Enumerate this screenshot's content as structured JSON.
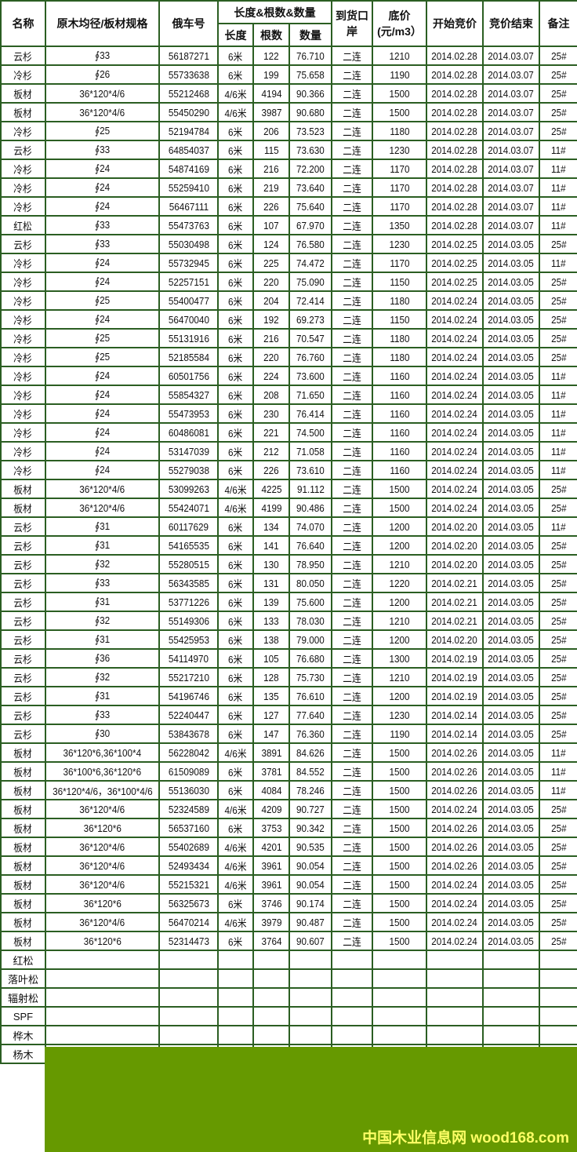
{
  "header": {
    "name": "名称",
    "spec": "原木均径/板材规格",
    "car": "俄车号",
    "group": "长度&根数&数量",
    "length": "长度",
    "count": "根数",
    "volume": "数量",
    "port": "到货口岸",
    "price": "底价(元/m3）",
    "start": "开始竞价",
    "end": "竞价结束",
    "note": "备注"
  },
  "rows": [
    [
      "云杉",
      "∮33",
      "56187271",
      "6米",
      "122",
      "76.710",
      "二连",
      "1210",
      "2014.02.28",
      "2014.03.07",
      "25#"
    ],
    [
      "冷杉",
      "∮26",
      "55733638",
      "6米",
      "199",
      "75.658",
      "二连",
      "1190",
      "2014.02.28",
      "2014.03.07",
      "25#"
    ],
    [
      "板材",
      "36*120*4/6",
      "55212468",
      "4/6米",
      "4194",
      "90.366",
      "二连",
      "1500",
      "2014.02.28",
      "2014.03.07",
      "25#"
    ],
    [
      "板材",
      "36*120*4/6",
      "55450290",
      "4/6米",
      "3987",
      "90.680",
      "二连",
      "1500",
      "2014.02.28",
      "2014.03.07",
      "25#"
    ],
    [
      "冷杉",
      "∮25",
      "52194784",
      "6米",
      "206",
      "73.523",
      "二连",
      "1180",
      "2014.02.28",
      "2014.03.07",
      "25#"
    ],
    [
      "云杉",
      "∮33",
      "64854037",
      "6米",
      "115",
      "73.630",
      "二连",
      "1230",
      "2014.02.28",
      "2014.03.07",
      "11#"
    ],
    [
      "冷杉",
      "∮24",
      "54874169",
      "6米",
      "216",
      "72.200",
      "二连",
      "1170",
      "2014.02.28",
      "2014.03.07",
      "11#"
    ],
    [
      "冷杉",
      "∮24",
      "55259410",
      "6米",
      "219",
      "73.640",
      "二连",
      "1170",
      "2014.02.28",
      "2014.03.07",
      "11#"
    ],
    [
      "冷杉",
      "∮24",
      "56467111",
      "6米",
      "226",
      "75.640",
      "二连",
      "1170",
      "2014.02.28",
      "2014.03.07",
      "11#"
    ],
    [
      "红松",
      "∮33",
      "55473763",
      "6米",
      "107",
      "67.970",
      "二连",
      "1350",
      "2014.02.28",
      "2014.03.07",
      "11#"
    ],
    [
      "云杉",
      "∮33",
      "55030498",
      "6米",
      "124",
      "76.580",
      "二连",
      "1230",
      "2014.02.25",
      "2014.03.05",
      "25#"
    ],
    [
      "冷杉",
      "∮24",
      "55732945",
      "6米",
      "225",
      "74.472",
      "二连",
      "1170",
      "2014.02.25",
      "2014.03.05",
      "11#"
    ],
    [
      "冷杉",
      "∮24",
      "52257151",
      "6米",
      "220",
      "75.090",
      "二连",
      "1150",
      "2014.02.25",
      "2014.03.05",
      "25#"
    ],
    [
      "冷杉",
      "∮25",
      "55400477",
      "6米",
      "204",
      "72.414",
      "二连",
      "1180",
      "2014.02.24",
      "2014.03.05",
      "25#"
    ],
    [
      "冷杉",
      "∮24",
      "56470040",
      "6米",
      "192",
      "69.273",
      "二连",
      "1150",
      "2014.02.24",
      "2014.03.05",
      "25#"
    ],
    [
      "冷杉",
      "∮25",
      "55131916",
      "6米",
      "216",
      "70.547",
      "二连",
      "1180",
      "2014.02.24",
      "2014.03.05",
      "25#"
    ],
    [
      "冷杉",
      "∮25",
      "52185584",
      "6米",
      "220",
      "76.760",
      "二连",
      "1180",
      "2014.02.24",
      "2014.03.05",
      "25#"
    ],
    [
      "冷杉",
      "∮24",
      "60501756",
      "6米",
      "224",
      "73.600",
      "二连",
      "1160",
      "2014.02.24",
      "2014.03.05",
      "11#"
    ],
    [
      "冷杉",
      "∮24",
      "55854327",
      "6米",
      "208",
      "71.650",
      "二连",
      "1160",
      "2014.02.24",
      "2014.03.05",
      "11#"
    ],
    [
      "冷杉",
      "∮24",
      "55473953",
      "6米",
      "230",
      "76.414",
      "二连",
      "1160",
      "2014.02.24",
      "2014.03.05",
      "11#"
    ],
    [
      "冷杉",
      "∮24",
      "60486081",
      "6米",
      "221",
      "74.500",
      "二连",
      "1160",
      "2014.02.24",
      "2014.03.05",
      "11#"
    ],
    [
      "冷杉",
      "∮24",
      "53147039",
      "6米",
      "212",
      "71.058",
      "二连",
      "1160",
      "2014.02.24",
      "2014.03.05",
      "11#"
    ],
    [
      "冷杉",
      "∮24",
      "55279038",
      "6米",
      "226",
      "73.610",
      "二连",
      "1160",
      "2014.02.24",
      "2014.03.05",
      "11#"
    ],
    [
      "板材",
      "36*120*4/6",
      "53099263",
      "4/6米",
      "4225",
      "91.112",
      "二连",
      "1500",
      "2014.02.24",
      "2014.03.05",
      "25#"
    ],
    [
      "板材",
      "36*120*4/6",
      "55424071",
      "4/6米",
      "4199",
      "90.486",
      "二连",
      "1500",
      "2014.02.24",
      "2014.03.05",
      "25#"
    ],
    [
      "云杉",
      "∮31",
      "60117629",
      "6米",
      "134",
      "74.070",
      "二连",
      "1200",
      "2014.02.20",
      "2014.03.05",
      "11#"
    ],
    [
      "云杉",
      "∮31",
      "54165535",
      "6米",
      "141",
      "76.640",
      "二连",
      "1200",
      "2014.02.20",
      "2014.03.05",
      "25#"
    ],
    [
      "云杉",
      "∮32",
      "55280515",
      "6米",
      "130",
      "78.950",
      "二连",
      "1210",
      "2014.02.20",
      "2014.03.05",
      "25#"
    ],
    [
      "云杉",
      "∮33",
      "56343585",
      "6米",
      "131",
      "80.050",
      "二连",
      "1220",
      "2014.02.21",
      "2014.03.05",
      "25#"
    ],
    [
      "云杉",
      "∮31",
      "53771226",
      "6米",
      "139",
      "75.600",
      "二连",
      "1200",
      "2014.02.21",
      "2014.03.05",
      "25#"
    ],
    [
      "云杉",
      "∮32",
      "55149306",
      "6米",
      "133",
      "78.030",
      "二连",
      "1210",
      "2014.02.21",
      "2014.03.05",
      "25#"
    ],
    [
      "云杉",
      "∮31",
      "55425953",
      "6米",
      "138",
      "79.000",
      "二连",
      "1200",
      "2014.02.20",
      "2014.03.05",
      "25#"
    ],
    [
      "云杉",
      "∮36",
      "54114970",
      "6米",
      "105",
      "76.680",
      "二连",
      "1300",
      "2014.02.19",
      "2014.03.05",
      "25#"
    ],
    [
      "云杉",
      "∮32",
      "55217210",
      "6米",
      "128",
      "75.730",
      "二连",
      "1210",
      "2014.02.19",
      "2014.03.05",
      "25#"
    ],
    [
      "云杉",
      "∮31",
      "54196746",
      "6米",
      "135",
      "76.610",
      "二连",
      "1200",
      "2014.02.19",
      "2014.03.05",
      "25#"
    ],
    [
      "云杉",
      "∮33",
      "52240447",
      "6米",
      "127",
      "77.640",
      "二连",
      "1230",
      "2014.02.14",
      "2014.03.05",
      "25#"
    ],
    [
      "云杉",
      "∮30",
      "53843678",
      "6米",
      "147",
      "76.360",
      "二连",
      "1190",
      "2014.02.14",
      "2014.03.05",
      "25#"
    ],
    [
      "板材",
      "36*120*6,36*100*4",
      "56228042",
      "4/6米",
      "3891",
      "84.626",
      "二连",
      "1500",
      "2014.02.26",
      "2014.03.05",
      "11#"
    ],
    [
      "板材",
      "36*100*6,36*120*6",
      "61509089",
      "6米",
      "3781",
      "84.552",
      "二连",
      "1500",
      "2014.02.26",
      "2014.03.05",
      "11#"
    ],
    [
      "板材",
      "36*120*4/6，36*100*4/6",
      "55136030",
      "6米",
      "4084",
      "78.246",
      "二连",
      "1500",
      "2014.02.26",
      "2014.03.05",
      "11#"
    ],
    [
      "板材",
      "36*120*4/6",
      "52324589",
      "4/6米",
      "4209",
      "90.727",
      "二连",
      "1500",
      "2014.02.24",
      "2014.03.05",
      "25#"
    ],
    [
      "板材",
      "36*120*6",
      "56537160",
      "6米",
      "3753",
      "90.342",
      "二连",
      "1500",
      "2014.02.26",
      "2014.03.05",
      "25#"
    ],
    [
      "板材",
      "36*120*4/6",
      "55402689",
      "4/6米",
      "4201",
      "90.535",
      "二连",
      "1500",
      "2014.02.26",
      "2014.03.05",
      "25#"
    ],
    [
      "板材",
      "36*120*4/6",
      "52493434",
      "4/6米",
      "3961",
      "90.054",
      "二连",
      "1500",
      "2014.02.26",
      "2014.03.05",
      "25#"
    ],
    [
      "板材",
      "36*120*4/6",
      "55215321",
      "4/6米",
      "3961",
      "90.054",
      "二连",
      "1500",
      "2014.02.24",
      "2014.03.05",
      "25#"
    ],
    [
      "板材",
      "36*120*6",
      "56325673",
      "6米",
      "3746",
      "90.174",
      "二连",
      "1500",
      "2014.02.24",
      "2014.03.05",
      "25#"
    ],
    [
      "板材",
      "36*120*4/6",
      "56470214",
      "4/6米",
      "3979",
      "90.487",
      "二连",
      "1500",
      "2014.02.24",
      "2014.03.05",
      "25#"
    ],
    [
      "板材",
      "36*120*6",
      "52314473",
      "6米",
      "3764",
      "90.607",
      "二连",
      "1500",
      "2014.02.24",
      "2014.03.05",
      "25#"
    ]
  ],
  "empty_rows": [
    "红松",
    "落叶松",
    "辐射松",
    "SPF",
    "桦木",
    "杨木"
  ],
  "watermark": "中国木业信息网 wood168.com",
  "colors": {
    "border": "#2b5e22",
    "overlay": "#669900",
    "watermark": "#ffff66"
  }
}
